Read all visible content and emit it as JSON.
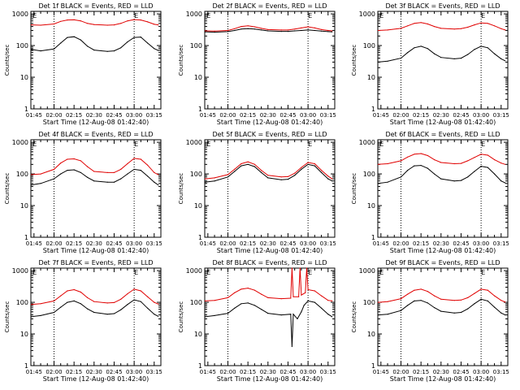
{
  "figure": {
    "xlabel": "Start Time (12-Aug-08 01:42:40)",
    "ylabel": "Counts/sec",
    "x_ticks": [
      "01:45",
      "02:00",
      "02:15",
      "02:30",
      "02:45",
      "03:00",
      "03:15"
    ],
    "y_ticks": [
      "1",
      "10",
      "100",
      "1000"
    ],
    "flag_label": "E",
    "colors": {
      "events": "#000000",
      "lld": "#e00000",
      "axis": "#000000",
      "background": "#ffffff"
    }
  },
  "chart_data": [
    {
      "type": "line",
      "title": "Det 1f BLACK = Events, RED = LLD",
      "ylim": [
        1,
        1200
      ],
      "xlim": [
        "01:42:40",
        "03:20:00"
      ],
      "grid": false,
      "markers": [
        "02:00",
        "03:00"
      ],
      "flags": [
        "01:44",
        "03:00"
      ],
      "series": [
        {
          "name": "Events",
          "color": "#000000",
          "x": [
            "01:43",
            "01:50",
            "02:00",
            "02:05",
            "02:10",
            "02:15",
            "02:20",
            "02:25",
            "02:30",
            "02:40",
            "02:45",
            "02:50",
            "02:55",
            "03:00",
            "03:05",
            "03:10",
            "03:15",
            "03:18"
          ],
          "values": [
            75,
            68,
            78,
            120,
            180,
            190,
            150,
            95,
            72,
            65,
            68,
            85,
            130,
            180,
            185,
            120,
            80,
            70
          ]
        },
        {
          "name": "LLD",
          "color": "#e00000",
          "x": [
            "01:43",
            "01:50",
            "02:00",
            "02:05",
            "02:10",
            "02:15",
            "02:20",
            "02:25",
            "02:30",
            "02:40",
            "02:45",
            "02:50",
            "02:55",
            "03:00",
            "03:05",
            "03:10",
            "03:15",
            "03:18"
          ],
          "values": [
            450,
            440,
            480,
            580,
            640,
            650,
            600,
            500,
            460,
            440,
            450,
            500,
            600,
            660,
            640,
            560,
            470,
            450
          ]
        }
      ]
    },
    {
      "type": "line",
      "title": "Det 2f BLACK = Events, RED = LLD",
      "ylim": [
        1,
        1200
      ],
      "xlim": [
        "01:42:40",
        "03:20:00"
      ],
      "grid": false,
      "markers": [
        "02:00",
        "03:00"
      ],
      "flags": [
        "01:44",
        "03:00"
      ],
      "series": [
        {
          "name": "Events",
          "color": "#000000",
          "x": [
            "01:43",
            "01:50",
            "02:00",
            "02:05",
            "02:10",
            "02:15",
            "02:20",
            "02:25",
            "02:30",
            "02:40",
            "02:45",
            "02:50",
            "02:55",
            "03:00",
            "03:05",
            "03:10",
            "03:15",
            "03:18"
          ],
          "values": [
            270,
            265,
            275,
            300,
            330,
            340,
            330,
            310,
            290,
            280,
            280,
            290,
            300,
            310,
            300,
            285,
            275,
            270
          ]
        },
        {
          "name": "LLD",
          "color": "#e00000",
          "x": [
            "01:43",
            "01:50",
            "02:00",
            "02:05",
            "02:10",
            "02:15",
            "02:20",
            "02:25",
            "02:30",
            "02:40",
            "02:45",
            "02:50",
            "02:55",
            "03:00",
            "03:05",
            "03:10",
            "03:15",
            "03:18"
          ],
          "values": [
            290,
            285,
            300,
            340,
            400,
            420,
            390,
            350,
            320,
            310,
            310,
            330,
            360,
            390,
            360,
            320,
            300,
            290
          ]
        }
      ]
    },
    {
      "type": "line",
      "title": "Det 3f BLACK = Events, RED = LLD",
      "ylim": [
        1,
        1200
      ],
      "xlim": [
        "01:42:40",
        "03:20:00"
      ],
      "grid": false,
      "markers": [
        "02:00",
        "03:00"
      ],
      "flags": [
        "01:44",
        "03:00"
      ],
      "series": [
        {
          "name": "Events",
          "color": "#000000",
          "x": [
            "01:43",
            "01:50",
            "02:00",
            "02:05",
            "02:10",
            "02:15",
            "02:20",
            "02:25",
            "02:30",
            "02:40",
            "02:45",
            "02:50",
            "02:55",
            "03:00",
            "03:05",
            "03:10",
            "03:15",
            "03:18"
          ],
          "values": [
            30,
            32,
            40,
            60,
            85,
            95,
            80,
            55,
            42,
            38,
            40,
            52,
            75,
            95,
            85,
            55,
            38,
            33
          ]
        },
        {
          "name": "LLD",
          "color": "#e00000",
          "x": [
            "01:43",
            "01:50",
            "02:00",
            "02:05",
            "02:10",
            "02:15",
            "02:20",
            "02:25",
            "02:30",
            "02:40",
            "02:45",
            "02:50",
            "02:55",
            "03:00",
            "03:05",
            "03:10",
            "03:15",
            "03:18"
          ],
          "values": [
            300,
            310,
            350,
            420,
            500,
            530,
            480,
            400,
            350,
            330,
            340,
            380,
            450,
            520,
            500,
            420,
            340,
            310
          ]
        }
      ]
    },
    {
      "type": "line",
      "title": "Det 4f BLACK = Events, RED = LLD",
      "ylim": [
        1,
        1200
      ],
      "xlim": [
        "01:42:40",
        "03:20:00"
      ],
      "grid": false,
      "markers": [
        "02:00",
        "03:00"
      ],
      "flags": [
        "01:44",
        "03:00"
      ],
      "series": [
        {
          "name": "Events",
          "color": "#000000",
          "x": [
            "01:43",
            "01:50",
            "02:00",
            "02:05",
            "02:10",
            "02:15",
            "02:20",
            "02:25",
            "02:30",
            "02:40",
            "02:45",
            "02:50",
            "02:55",
            "03:00",
            "03:05",
            "03:10",
            "03:15",
            "03:18"
          ],
          "values": [
            45,
            50,
            70,
            100,
            130,
            135,
            110,
            78,
            60,
            55,
            55,
            70,
            100,
            140,
            130,
            85,
            55,
            45
          ]
        },
        {
          "name": "LLD",
          "color": "#e00000",
          "x": [
            "01:43",
            "01:50",
            "02:00",
            "02:05",
            "02:10",
            "02:15",
            "02:20",
            "02:25",
            "02:30",
            "02:40",
            "02:45",
            "02:50",
            "02:55",
            "03:00",
            "03:05",
            "03:10",
            "03:15",
            "03:18"
          ],
          "values": [
            95,
            100,
            140,
            220,
            290,
            300,
            260,
            170,
            120,
            110,
            110,
            140,
            210,
            310,
            290,
            190,
            110,
            95
          ]
        }
      ]
    },
    {
      "type": "line",
      "title": "Det 5f BLACK = Events, RED = LLD",
      "ylim": [
        1,
        1200
      ],
      "xlim": [
        "01:42:40",
        "03:20:00"
      ],
      "grid": false,
      "markers": [
        "02:00",
        "03:00"
      ],
      "flags": [
        "01:44",
        "03:00"
      ],
      "series": [
        {
          "name": "Events",
          "color": "#000000",
          "x": [
            "01:43",
            "01:50",
            "02:00",
            "02:05",
            "02:10",
            "02:15",
            "02:20",
            "02:25",
            "02:30",
            "02:40",
            "02:45",
            "02:50",
            "02:55",
            "03:00",
            "03:05",
            "03:10",
            "03:15",
            "03:18"
          ],
          "values": [
            55,
            60,
            80,
            120,
            180,
            200,
            170,
            110,
            75,
            65,
            68,
            90,
            140,
            200,
            180,
            110,
            70,
            60
          ]
        },
        {
          "name": "LLD",
          "color": "#e00000",
          "x": [
            "01:43",
            "01:50",
            "02:00",
            "02:05",
            "02:10",
            "02:15",
            "02:20",
            "02:25",
            "02:30",
            "02:40",
            "02:45",
            "02:50",
            "02:55",
            "03:00",
            "03:05",
            "03:10",
            "03:15",
            "03:18"
          ],
          "values": [
            70,
            75,
            95,
            140,
            210,
            240,
            200,
            130,
            90,
            80,
            82,
            105,
            160,
            230,
            210,
            130,
            85,
            70
          ]
        }
      ]
    },
    {
      "type": "line",
      "title": "Det 6f BLACK = Events, RED = LLD",
      "ylim": [
        1,
        1200
      ],
      "xlim": [
        "01:42:40",
        "03:20:00"
      ],
      "grid": false,
      "markers": [
        "02:00",
        "03:00"
      ],
      "flags": [
        "01:44",
        "03:00"
      ],
      "series": [
        {
          "name": "Events",
          "color": "#000000",
          "x": [
            "01:43",
            "01:50",
            "02:00",
            "02:05",
            "02:10",
            "02:15",
            "02:20",
            "02:25",
            "02:30",
            "02:40",
            "02:45",
            "02:50",
            "02:55",
            "03:00",
            "03:05",
            "03:10",
            "03:15",
            "03:18"
          ],
          "values": [
            50,
            55,
            80,
            130,
            180,
            185,
            150,
            100,
            70,
            60,
            62,
            80,
            120,
            175,
            160,
            100,
            60,
            52
          ]
        },
        {
          "name": "LLD",
          "color": "#e00000",
          "x": [
            "01:43",
            "01:50",
            "02:00",
            "02:05",
            "02:10",
            "02:15",
            "02:20",
            "02:25",
            "02:30",
            "02:40",
            "02:45",
            "02:50",
            "02:55",
            "03:00",
            "03:05",
            "03:10",
            "03:15",
            "03:18"
          ],
          "values": [
            200,
            210,
            260,
            340,
            420,
            440,
            380,
            280,
            230,
            210,
            215,
            260,
            330,
            420,
            390,
            280,
            220,
            200
          ]
        }
      ]
    },
    {
      "type": "line",
      "title": "Det 7f BLACK = Events, RED = LLD",
      "ylim": [
        1,
        1200
      ],
      "xlim": [
        "01:42:40",
        "03:20:00"
      ],
      "grid": false,
      "markers": [
        "02:00",
        "03:00"
      ],
      "flags": [
        "01:44",
        "03:00"
      ],
      "series": [
        {
          "name": "Events",
          "color": "#000000",
          "x": [
            "01:43",
            "01:50",
            "02:00",
            "02:05",
            "02:10",
            "02:15",
            "02:20",
            "02:25",
            "02:30",
            "02:40",
            "02:45",
            "02:50",
            "02:55",
            "03:00",
            "03:05",
            "03:10",
            "03:15",
            "03:18"
          ],
          "values": [
            35,
            38,
            48,
            70,
            100,
            110,
            90,
            62,
            48,
            42,
            44,
            58,
            85,
            120,
            105,
            65,
            42,
            36
          ]
        },
        {
          "name": "LLD",
          "color": "#e00000",
          "x": [
            "01:43",
            "01:50",
            "02:00",
            "02:05",
            "02:10",
            "02:15",
            "02:20",
            "02:25",
            "02:30",
            "02:40",
            "02:45",
            "02:50",
            "02:55",
            "03:00",
            "03:05",
            "03:10",
            "03:15",
            "03:18"
          ],
          "values": [
            85,
            90,
            110,
            160,
            230,
            250,
            210,
            140,
            105,
            95,
            98,
            125,
            185,
            260,
            230,
            150,
            100,
            88
          ]
        }
      ]
    },
    {
      "type": "line",
      "title": "Det 8f BLACK = Events, RED = LLD",
      "ylim": [
        1,
        1200
      ],
      "xlim": [
        "01:42:40",
        "03:20:00"
      ],
      "grid": false,
      "markers": [
        "02:00",
        "03:00"
      ],
      "flags": [
        "01:44",
        "03:00"
      ],
      "series": [
        {
          "name": "Events",
          "color": "#000000",
          "x": [
            "01:43",
            "01:50",
            "02:00",
            "02:05",
            "02:10",
            "02:15",
            "02:20",
            "02:25",
            "02:30",
            "02:40",
            "02:47",
            "02:48",
            "02:49",
            "02:52",
            "02:55",
            "02:57",
            "03:00",
            "03:05",
            "03:10",
            "03:15",
            "03:18"
          ],
          "values": [
            35,
            38,
            45,
            65,
            90,
            95,
            80,
            60,
            45,
            40,
            42,
            4,
            42,
            30,
            50,
            80,
            110,
            100,
            65,
            42,
            35
          ]
        },
        {
          "name": "LLD",
          "color": "#e00000",
          "x": [
            "01:43",
            "01:50",
            "02:00",
            "02:05",
            "02:10",
            "02:15",
            "02:20",
            "02:25",
            "02:30",
            "02:40",
            "02:47",
            "02:48",
            "02:49",
            "02:53",
            "02:54",
            "02:55",
            "02:58",
            "02:59",
            "03:00",
            "03:05",
            "03:10",
            "03:15",
            "03:18"
          ],
          "values": [
            110,
            115,
            140,
            200,
            260,
            280,
            240,
            180,
            140,
            130,
            135,
            1200,
            150,
            150,
            1200,
            170,
            200,
            1200,
            250,
            230,
            160,
            115,
            110
          ]
        }
      ]
    },
    {
      "type": "line",
      "title": "Det 9f BLACK = Events, RED = LLD",
      "ylim": [
        1,
        1200
      ],
      "xlim": [
        "01:42:40",
        "03:20:00"
      ],
      "grid": false,
      "markers": [
        "02:00",
        "03:00"
      ],
      "flags": [
        "01:44",
        "03:00"
      ],
      "series": [
        {
          "name": "Events",
          "color": "#000000",
          "x": [
            "01:43",
            "01:50",
            "02:00",
            "02:05",
            "02:10",
            "02:15",
            "02:20",
            "02:25",
            "02:30",
            "02:40",
            "02:45",
            "02:50",
            "02:55",
            "03:00",
            "03:05",
            "03:10",
            "03:15",
            "03:18"
          ],
          "values": [
            40,
            42,
            55,
            80,
            110,
            115,
            95,
            68,
            52,
            46,
            48,
            62,
            90,
            125,
            110,
            70,
            46,
            40
          ]
        },
        {
          "name": "LLD",
          "color": "#e00000",
          "x": [
            "01:43",
            "01:50",
            "02:00",
            "02:05",
            "02:10",
            "02:15",
            "02:20",
            "02:25",
            "02:30",
            "02:40",
            "02:45",
            "02:50",
            "02:55",
            "03:00",
            "03:05",
            "03:10",
            "03:15",
            "03:18"
          ],
          "values": [
            100,
            105,
            130,
            180,
            240,
            260,
            220,
            160,
            125,
            115,
            118,
            140,
            190,
            260,
            240,
            160,
            115,
            102
          ]
        }
      ]
    }
  ]
}
